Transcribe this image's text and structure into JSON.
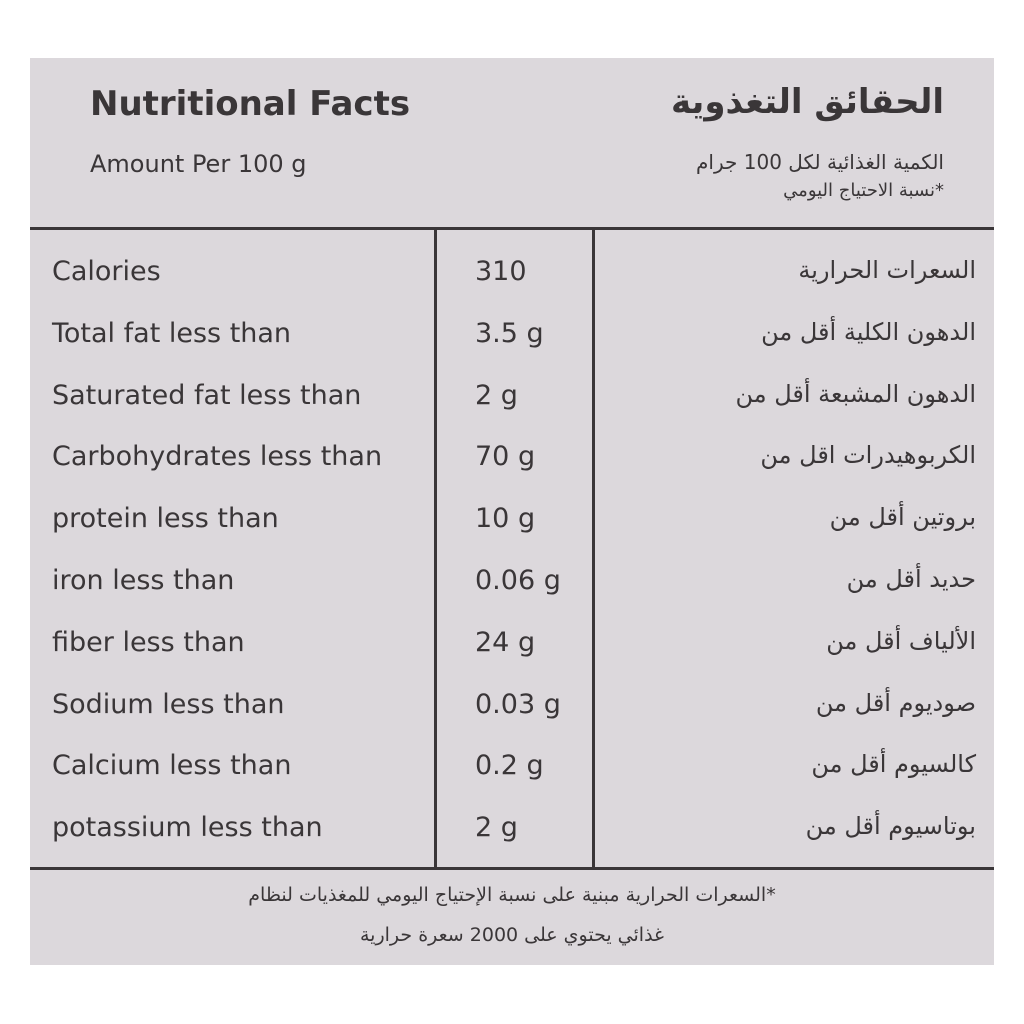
{
  "header": {
    "title_en": "Nutritional Facts",
    "subtitle_en": "Amount Per 100 g",
    "title_ar": "الحقائق التغذوية",
    "subtitle_ar": "الكمية الغذائية لكل 100 جرام",
    "note_ar": "*نسبة الاحتياج اليومي"
  },
  "table": {
    "rows": [
      [
        "Calories",
        "310",
        "السعرات الحرارية"
      ],
      [
        "Total fat less than",
        "3.5 g",
        "الدهون الكلية أقل من"
      ],
      [
        "Saturated fat less than",
        "2 g",
        "الدهون المشبعة أقل من"
      ],
      [
        "Carbohydrates less than",
        "70 g",
        "الكربوهيدرات اقل من"
      ],
      [
        "protein less than",
        "10 g",
        "بروتين أقل من"
      ],
      [
        "iron less than",
        "0.06 g",
        "حديد أقل من"
      ],
      [
        "fiber less than",
        "24 g",
        "الألياف أقل من"
      ],
      [
        "Sodium less than",
        "0.03 g",
        "صوديوم أقل من"
      ],
      [
        "Calcium less than",
        "0.2 g",
        "كالسيوم أقل من"
      ],
      [
        "potassium less than",
        "2 g",
        "بوتاسيوم أقل من"
      ]
    ]
  },
  "footer": {
    "lines": [
      "*السعرات الحرارية مبنية على نسبة الإحتياج اليومي للمغذيات لنظام",
      "غذائي يحتوي على 2000 سعرة حرارية"
    ]
  }
}
